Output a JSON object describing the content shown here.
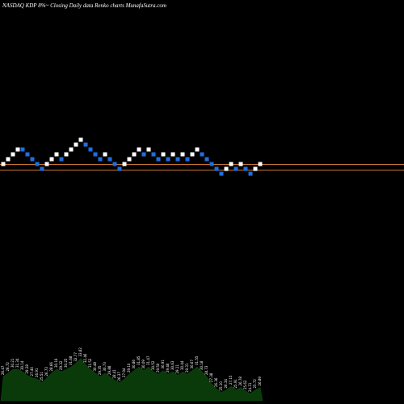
{
  "title": "NASDAQ KDP 8%~  Closing Daily data  Renko  charts MunafaSutra.com",
  "colors": {
    "background": "#000000",
    "up_brick": "#ffffff",
    "down_brick": "#1e6fe0",
    "reference_line": "#c87533",
    "volume_fill": "#0a3a0a",
    "volume_text": "#ffffff"
  },
  "chart_data": [
    {
      "type": "renko",
      "title": "NASDAQ KDP 8%~  Closing Daily data  Renko  charts MunafaSutra.com",
      "brick_levels": [
        0,
        1,
        2,
        3,
        3,
        2,
        1,
        0,
        -1,
        0,
        1,
        2,
        1,
        2,
        3,
        4,
        5,
        4,
        3,
        2,
        1,
        2,
        1,
        0,
        -1,
        0,
        1,
        2,
        3,
        2,
        3,
        2,
        1,
        2,
        1,
        2,
        1,
        2,
        1,
        2,
        3,
        2,
        1,
        0,
        -1,
        -2,
        -1,
        0,
        -1,
        0,
        -1,
        -2,
        -1,
        0
      ],
      "brick_colors": [
        "up",
        "up",
        "up",
        "up",
        "down",
        "down",
        "down",
        "down",
        "down",
        "up",
        "up",
        "up",
        "down",
        "up",
        "up",
        "up",
        "up",
        "down",
        "down",
        "down",
        "down",
        "up",
        "down",
        "down",
        "down",
        "up",
        "up",
        "up",
        "up",
        "down",
        "up",
        "down",
        "down",
        "up",
        "down",
        "up",
        "down",
        "up",
        "down",
        "up",
        "up",
        "down",
        "down",
        "down",
        "down",
        "down",
        "up",
        "up",
        "down",
        "up",
        "down",
        "down",
        "up",
        "up"
      ],
      "reference_lines": [
        "upper",
        "lower"
      ],
      "volume_values": [
        40,
        46,
        52,
        52,
        48,
        42,
        38,
        36,
        30,
        38,
        46,
        52,
        48,
        52,
        56,
        62,
        70,
        60,
        52,
        46,
        40,
        46,
        40,
        34,
        30,
        36,
        44,
        50,
        56,
        50,
        56,
        48,
        44,
        50,
        44,
        48,
        42,
        48,
        44,
        50,
        56,
        48,
        40,
        28,
        20,
        14,
        18,
        24,
        18,
        22,
        16,
        12,
        18,
        22
      ],
      "volume_labels": [
        "26.47",
        "28.72",
        "30.21",
        "31.34",
        "30.14",
        "29.28",
        "27.40",
        "26.91",
        "25.51",
        "26.73",
        "28.66",
        "30.16",
        "29.32",
        "30.25",
        "31.68",
        "32.77",
        "33.82",
        "32.46",
        "31.52",
        "30.48",
        "29.35",
        "30.73",
        "29.88",
        "28.41",
        "26.37",
        "27.94",
        "29.10",
        "30.86",
        "31.85",
        "30.09",
        "31.47",
        "30.52",
        "29.50",
        "30.91",
        "29.46",
        "30.63",
        "29.11",
        "30.44",
        "29.31",
        "30.67",
        "31.55",
        "30.18",
        "28.73",
        "27.38",
        "26.36",
        "25.10",
        "26.34",
        "27.15",
        "25.91",
        "26.78",
        "25.62",
        "24.31",
        "25.72",
        "26.89"
      ]
    }
  ]
}
